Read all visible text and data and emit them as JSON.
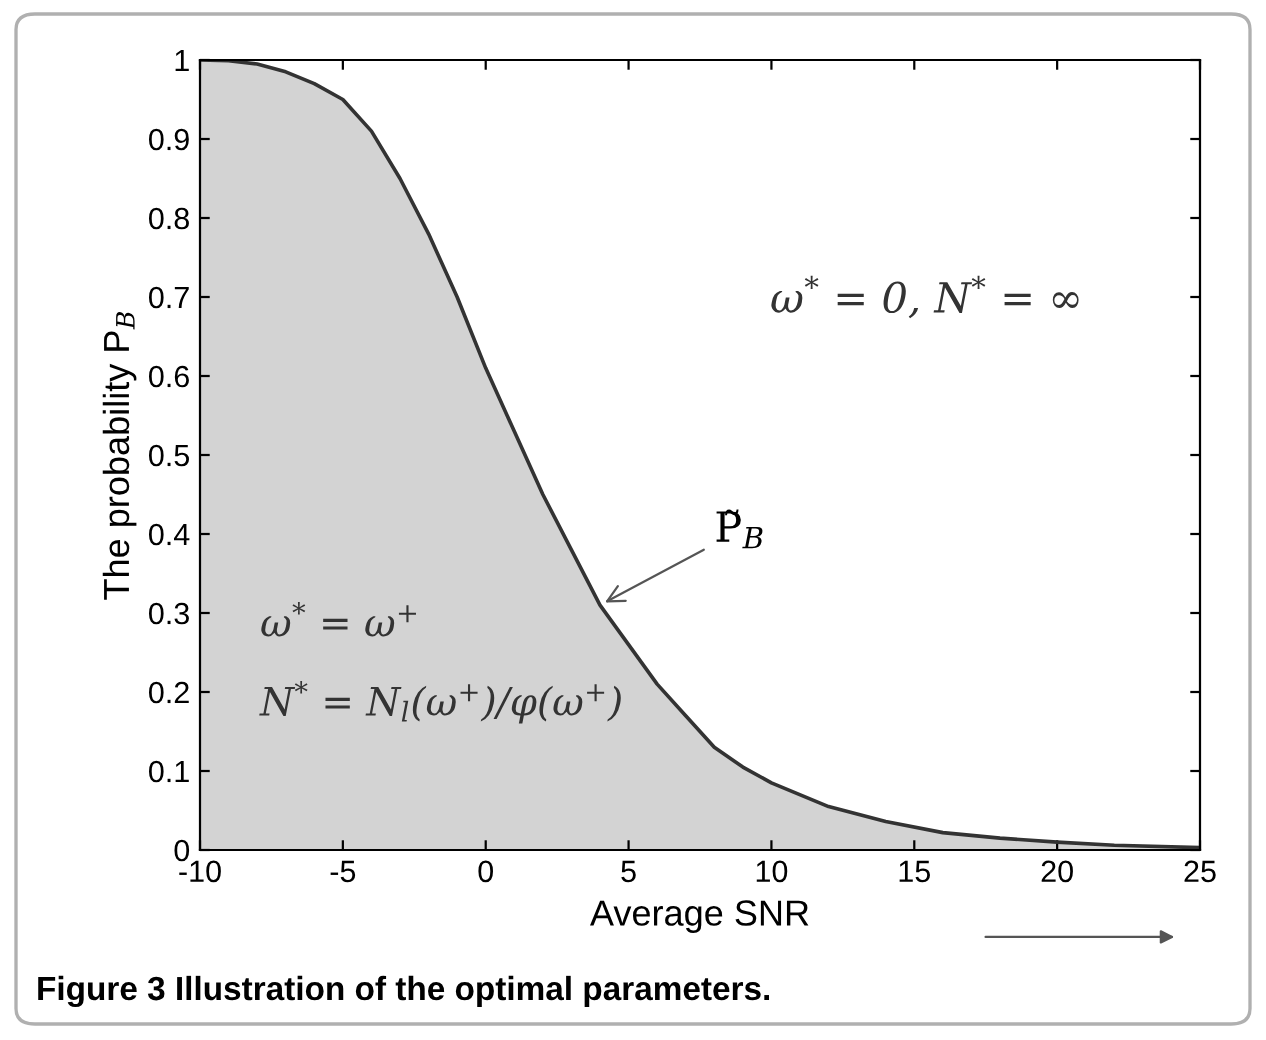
{
  "chart_data": {
    "type": "area",
    "xlabel": "Average SNR",
    "ylabel": "The probability P$_{B}$",
    "x": [
      -10,
      -9,
      -8,
      -7,
      -6,
      -5,
      -4,
      -3,
      -2,
      -1,
      0,
      1,
      2,
      3,
      4,
      5,
      6,
      7,
      8,
      9,
      10,
      12,
      14,
      16,
      18,
      20,
      22,
      25
    ],
    "series": [
      {
        "color": "#d3d3d3",
        "values": [
          1,
          0.999,
          0.995,
          0.985,
          0.97,
          0.95,
          0.91,
          0.85,
          0.78,
          0.7,
          0.61,
          0.53,
          0.45,
          0.38,
          0.31,
          0.26,
          0.21,
          0.17,
          0.13,
          0.105,
          0.085,
          0.055,
          0.036,
          0.022,
          0.015,
          0.01,
          0.006,
          0.003
        ]
      }
    ],
    "xlim": [
      -10,
      25
    ],
    "xticks": [
      -10,
      -5,
      0,
      5,
      10,
      15,
      20,
      25
    ],
    "ylim": [
      0,
      1
    ],
    "yticks": [
      0,
      0.1,
      0.2,
      0.3,
      0.4,
      0.5,
      0.6,
      0.7,
      0.8,
      0.9,
      1
    ],
    "grid": false,
    "annotations": [
      "ω$^{*}$ = 0, N$^{*}$ = ∞",
      "ω$^{*}$ = ω$^{+}$",
      "N$^{*}$ = N$_{l}$(ω$^{+}$)/φ(ω$^{+}$)",
      {
        "text": "P̃$_{B}$",
        "x": 4,
        "y": 0.31
      },
      "Figure 3 Illustration of the optimal parameters."
    ]
  }
}
